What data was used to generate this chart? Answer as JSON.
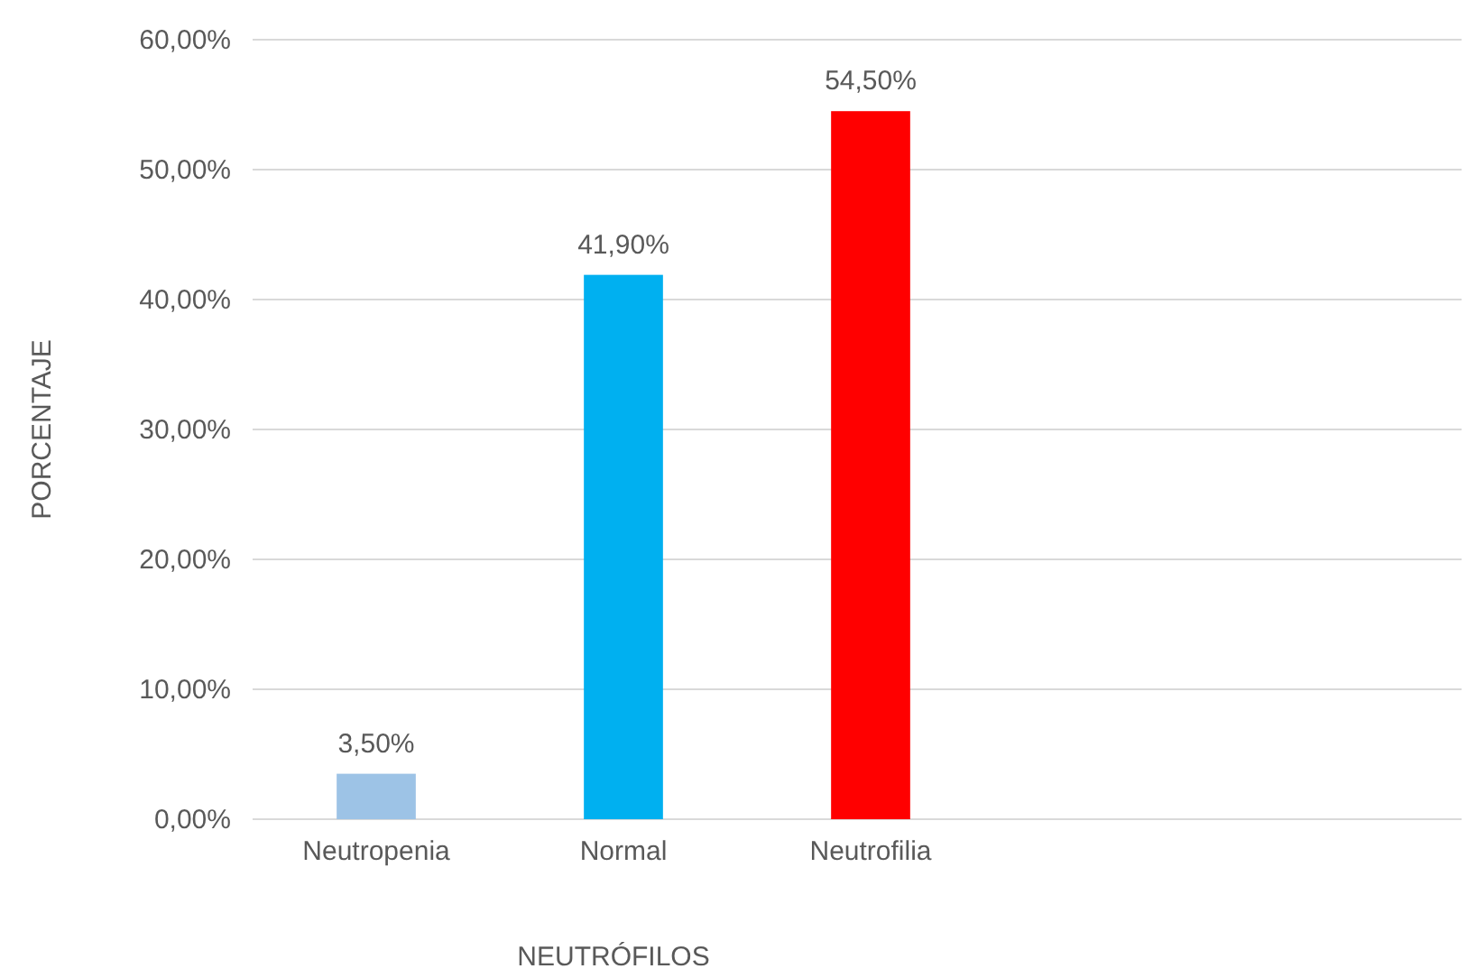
{
  "chart_data": {
    "type": "bar",
    "xlabel": "NEUTRÓFILOS",
    "ylabel": "PORCENTAJE",
    "categories": [
      "Neutropenia",
      "Normal",
      "Neutrofilia"
    ],
    "values": [
      3.5,
      41.9,
      54.5
    ],
    "colors": [
      "#9dc3e6",
      "#00b0f0",
      "#ff0000"
    ],
    "value_labels": [
      "3,50%",
      "41,90%",
      "54,50%"
    ],
    "ylim": [
      0,
      60
    ],
    "yticks": [
      {
        "value": 0,
        "label": "0,00%"
      },
      {
        "value": 10,
        "label": "10,00%"
      },
      {
        "value": 20,
        "label": "20,00%"
      },
      {
        "value": 30,
        "label": "30,00%"
      },
      {
        "value": 40,
        "label": "40,00%"
      },
      {
        "value": 50,
        "label": "50,00%"
      },
      {
        "value": 60,
        "label": "60,00%"
      }
    ],
    "grid": "y"
  }
}
